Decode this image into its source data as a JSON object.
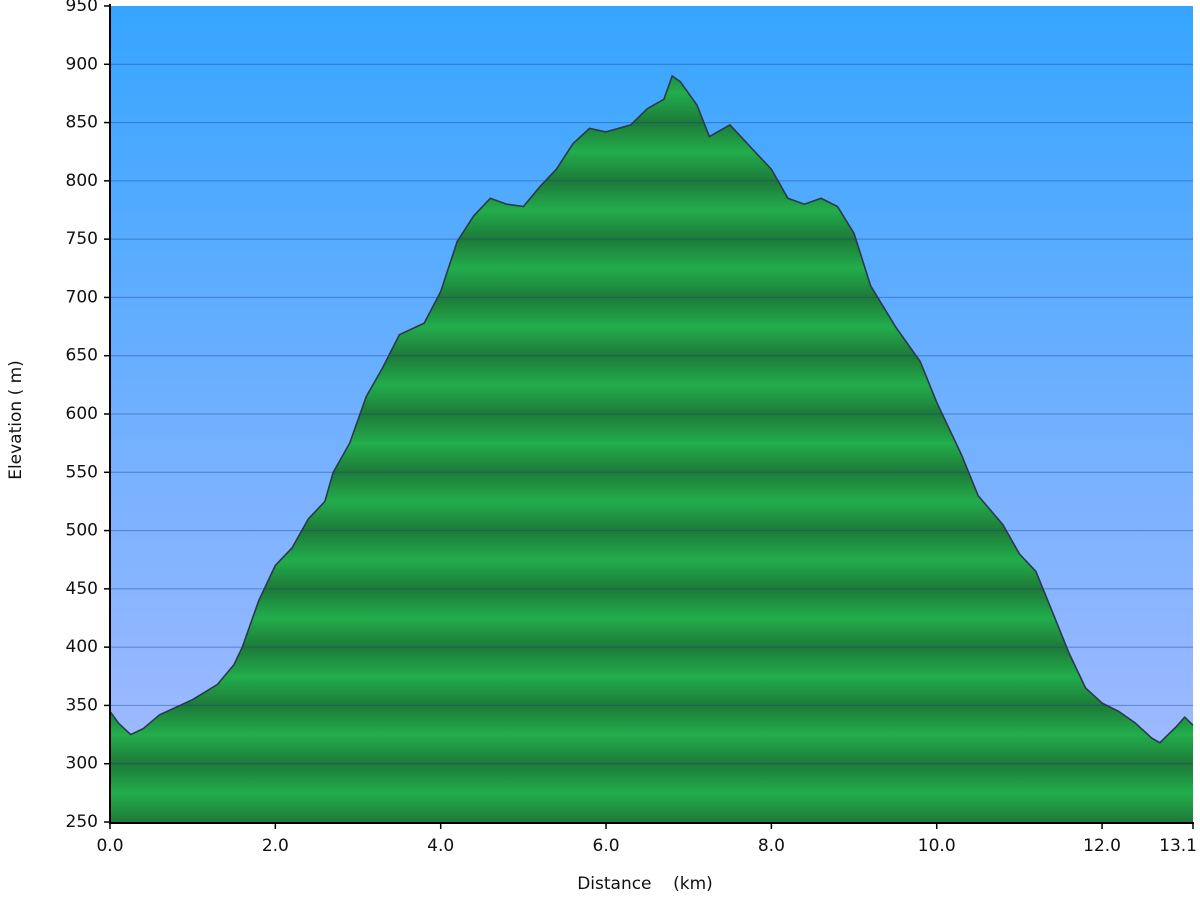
{
  "chart_data": {
    "type": "area",
    "x_label": "Distance    (km)",
    "y_label": "Elevation ( m)",
    "x": [
      0.0,
      0.1,
      0.25,
      0.4,
      0.6,
      1.0,
      1.3,
      1.5,
      1.6,
      1.8,
      2.0,
      2.2,
      2.4,
      2.6,
      2.7,
      2.9,
      3.1,
      3.3,
      3.5,
      3.8,
      4.0,
      4.2,
      4.4,
      4.6,
      4.8,
      5.0,
      5.2,
      5.4,
      5.6,
      5.8,
      6.0,
      6.3,
      6.5,
      6.7,
      6.8,
      6.9,
      7.1,
      7.25,
      7.5,
      7.8,
      8.0,
      8.2,
      8.4,
      8.6,
      8.8,
      9.0,
      9.2,
      9.5,
      9.8,
      10.0,
      10.3,
      10.5,
      10.8,
      11.0,
      11.2,
      11.4,
      11.6,
      11.8,
      12.0,
      12.2,
      12.4,
      12.6,
      12.7,
      12.9,
      13.0,
      13.1
    ],
    "values": [
      345,
      335,
      325,
      330,
      342,
      355,
      368,
      385,
      400,
      440,
      470,
      485,
      510,
      525,
      550,
      575,
      615,
      640,
      668,
      678,
      705,
      748,
      770,
      785,
      780,
      778,
      795,
      810,
      832,
      845,
      842,
      848,
      862,
      870,
      890,
      885,
      865,
      838,
      848,
      825,
      810,
      785,
      780,
      785,
      778,
      755,
      710,
      675,
      645,
      610,
      565,
      530,
      505,
      480,
      465,
      430,
      395,
      365,
      352,
      345,
      335,
      322,
      318,
      332,
      340,
      333
    ],
    "color": "#22a84a",
    "xlim": [
      0,
      13.1
    ],
    "xticks": [
      {
        "value": 0,
        "label": "0.0"
      },
      {
        "value": 2,
        "label": "2.0"
      },
      {
        "value": 4,
        "label": "4.0"
      },
      {
        "value": 6,
        "label": "6.0"
      },
      {
        "value": 8,
        "label": "8.0"
      },
      {
        "value": 10,
        "label": "10.0"
      },
      {
        "value": 12,
        "label": "12.0"
      },
      13.1
    ],
    "ylim": [
      250,
      950
    ],
    "yticks": [
      250,
      300,
      350,
      400,
      450,
      500,
      550,
      600,
      650,
      700,
      750,
      800,
      850,
      900,
      950
    ],
    "grid": true
  }
}
